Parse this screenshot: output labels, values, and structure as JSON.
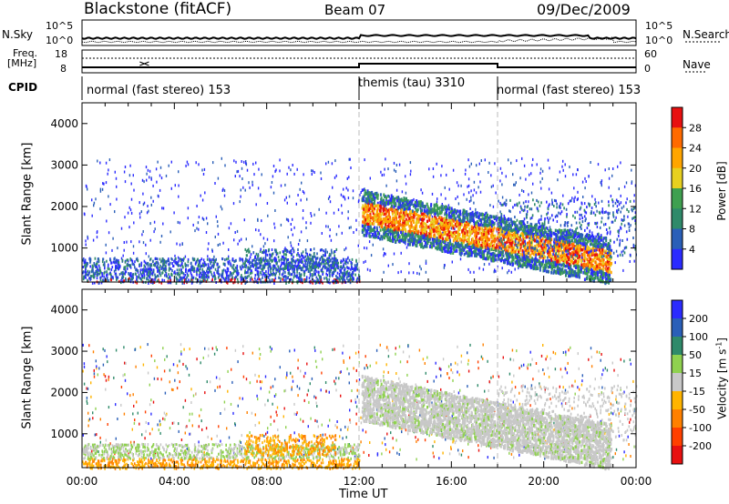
{
  "header": {
    "station": "Blackstone (fitACF)",
    "beam": "Beam 07",
    "date": "09/Dec/2009"
  },
  "left_labels": {
    "nsky": "N.Sky",
    "freq_line1": "Freq.",
    "freq_line2": "[MHz]",
    "cpid": "CPID"
  },
  "right_labels": {
    "nsearch": "N.Search",
    "nave": "Nave"
  },
  "noise_panel": {
    "left_ticks": [
      "10^5",
      "10^0"
    ],
    "right_ticks": [
      "10^5",
      "10^0"
    ]
  },
  "freq_panel": {
    "left_ticks": [
      "18",
      "8"
    ],
    "right_ticks": [
      "60",
      "0"
    ]
  },
  "cpid_segments": [
    {
      "label": "normal (fast stereo) 153",
      "start_hour": 0,
      "end_hour": 12
    },
    {
      "label": "themis (tau) 3310",
      "start_hour": 12,
      "end_hour": 18
    },
    {
      "label": "normal (fast stereo) 153",
      "start_hour": 18,
      "end_hour": 24
    }
  ],
  "colors": {
    "power": [
      "#2b2bff",
      "#2a5fb8",
      "#2f8a6a",
      "#3fa050",
      "#e8d020",
      "#ffa500",
      "#ff6a00",
      "#e81010"
    ],
    "velocity": [
      "#2b2bff",
      "#2a5fb8",
      "#2f8a6a",
      "#8fd14f",
      "#c8c8c8",
      "#ffb400",
      "#ff8000",
      "#ff4000",
      "#e81010"
    ]
  },
  "chart_data": [
    {
      "type": "heatmap",
      "title": "",
      "ylabel": "Slant Range [km]",
      "xlabel": "",
      "x_range_hours": [
        0,
        24
      ],
      "ylim": [
        180,
        4500
      ],
      "y_ticks": [
        "1000",
        "2000",
        "3000",
        "4000"
      ],
      "colorbar_label": "Power [dB]",
      "colorbar_ticks": [
        "4",
        "8",
        "12",
        "16",
        "20",
        "24",
        "28"
      ]
    },
    {
      "type": "heatmap",
      "title": "",
      "ylabel": "Slant Range [km]",
      "xlabel": "Time UT",
      "x_range_hours": [
        0,
        24
      ],
      "x_ticks": [
        "00:00",
        "04:00",
        "08:00",
        "12:00",
        "16:00",
        "20:00",
        "00:00"
      ],
      "ylim": [
        180,
        4500
      ],
      "y_ticks": [
        "1000",
        "2000",
        "3000",
        "4000"
      ],
      "colorbar_label": "Velocity [m s^-1]",
      "colorbar_ticks": [
        "200",
        "100",
        "50",
        "15",
        "-15",
        "-50",
        "-100",
        "-200"
      ]
    }
  ]
}
